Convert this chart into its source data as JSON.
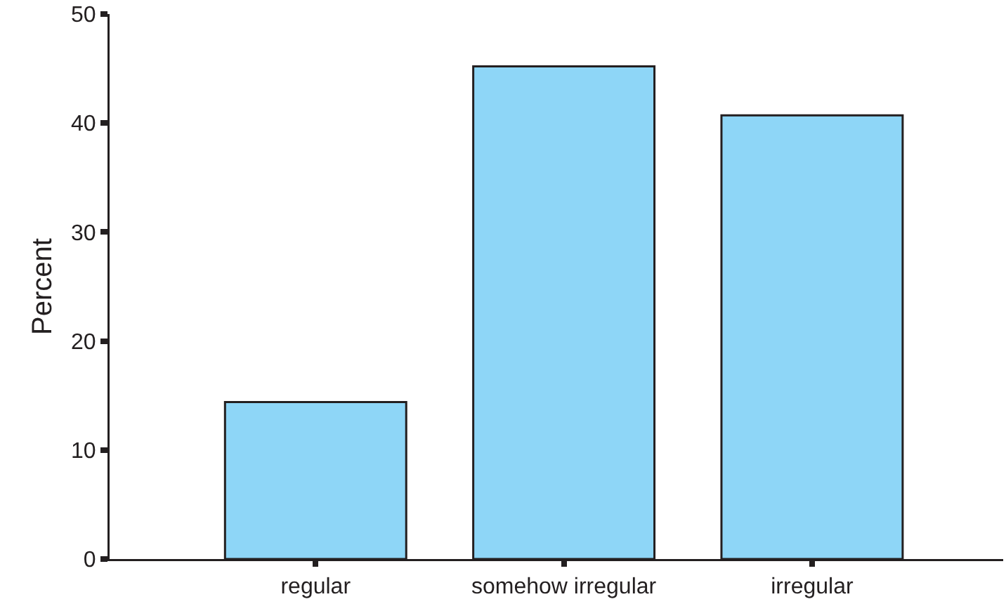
{
  "chart_data": {
    "type": "bar",
    "ylabel": "Percent",
    "categories": [
      "regular",
      "somehow irregular",
      "irregular"
    ],
    "values": [
      14.4,
      45.2,
      40.7
    ],
    "color": "#8ed6f7",
    "ylim": [
      0,
      50
    ],
    "yticks": [
      0,
      10,
      20,
      30,
      40,
      50
    ],
    "grid": false,
    "legend": false
  }
}
